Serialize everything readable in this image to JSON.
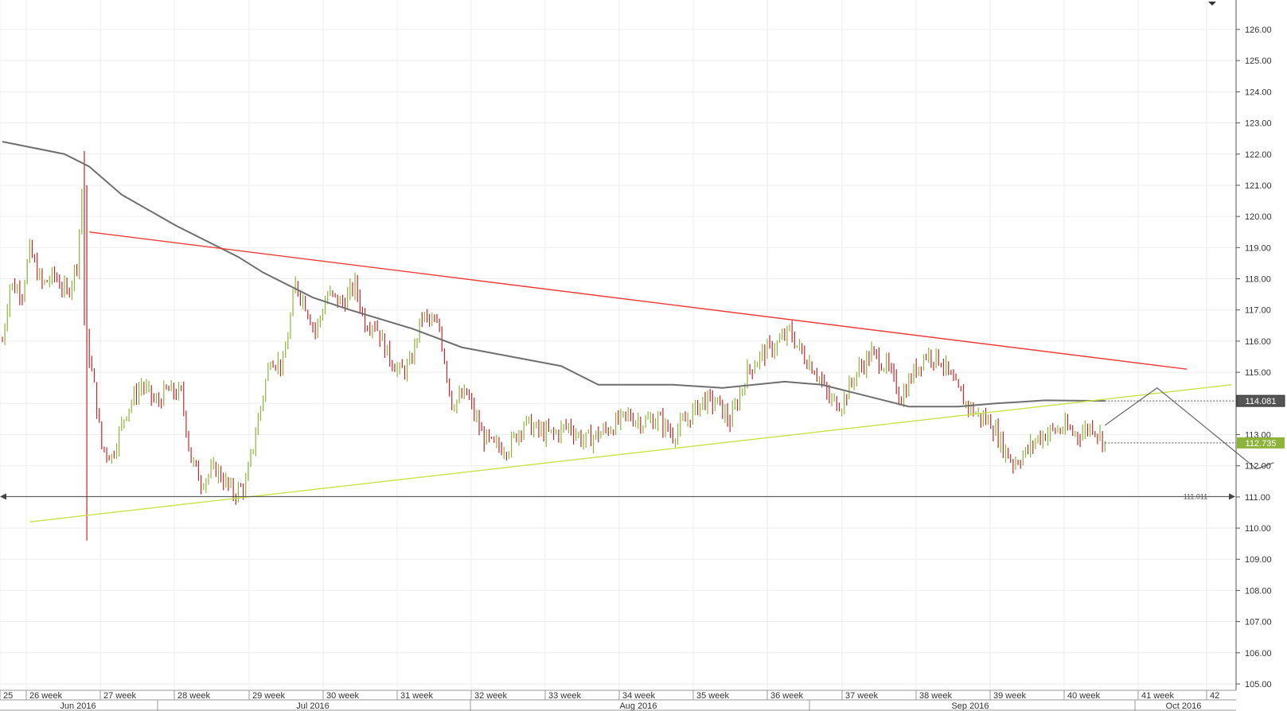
{
  "chart_data": {
    "type": "candlestick",
    "y_axis": {
      "ticks": [
        "126.00",
        "125.00",
        "124.00",
        "123.00",
        "122.00",
        "121.00",
        "120.00",
        "119.00",
        "118.00",
        "117.00",
        "116.00",
        "115.00",
        "114.00",
        "113.00",
        "112.00",
        "111.00",
        "110.00",
        "109.00",
        "108.00",
        "107.00",
        "106.00",
        "105.00"
      ],
      "ylim": [
        104.8,
        126.8
      ],
      "position": "right"
    },
    "week_labels": [
      "25",
      "26 week",
      "27 week",
      "28 week",
      "29 week",
      "30 week",
      "31 week",
      "32 week",
      "33 week",
      "34 week",
      "35 week",
      "36 week",
      "37 week",
      "38 week",
      "39 week",
      "40 week",
      "41 week",
      "42"
    ],
    "month_labels": [
      "Jun 2016",
      "Jul 2016",
      "Aug 2016",
      "Sep 2016",
      "Oct 2016"
    ],
    "price_badges": [
      {
        "label": "114.081",
        "value": 114.081,
        "color": "#555555"
      },
      {
        "label": "112.735",
        "value": 112.735,
        "color": "#8db43a"
      }
    ],
    "horizontal_level": {
      "label": "111.011",
      "value": 111.011
    },
    "colors": {
      "up_candle": "#8db43a",
      "down_candle": "#c0282b",
      "resistance_line": "#ec3c3c",
      "support_line": "#c6e34a",
      "moving_average": "#6f6f6f",
      "projection": "#707070",
      "grid": "#eeeeee"
    },
    "candles_summary": {
      "start_date_label": "Jun 2016",
      "end_date_label": "Sep 2016",
      "last_close": 112.735
    },
    "trendlines": [
      {
        "name": "resistance",
        "from": {
          "bar": 35,
          "price": 119.5
        },
        "to": {
          "bar": 477,
          "price": 115.1
        }
      },
      {
        "name": "support",
        "from": {
          "bar": 11,
          "price": 110.2
        },
        "to": {
          "bar": 495,
          "price": 114.6
        }
      }
    ],
    "moving_average_points": [
      [
        0,
        122.4
      ],
      [
        25,
        122.0
      ],
      [
        35,
        121.6
      ],
      [
        48,
        120.7
      ],
      [
        70,
        119.7
      ],
      [
        95,
        118.7
      ],
      [
        105,
        118.2
      ],
      [
        125,
        117.4
      ],
      [
        140,
        117.0
      ],
      [
        165,
        116.4
      ],
      [
        185,
        115.8
      ],
      [
        205,
        115.5
      ],
      [
        225,
        115.2
      ],
      [
        240,
        114.6
      ],
      [
        270,
        114.6
      ],
      [
        290,
        114.5
      ],
      [
        315,
        114.7
      ],
      [
        330,
        114.6
      ],
      [
        350,
        114.2
      ],
      [
        365,
        113.9
      ],
      [
        385,
        113.9
      ],
      [
        400,
        114.0
      ],
      [
        420,
        114.1
      ],
      [
        444,
        114.08
      ]
    ],
    "projection_points": [
      [
        444,
        113.3
      ],
      [
        465,
        114.5
      ],
      [
        505,
        111.9
      ],
      [
        512,
        112.1
      ]
    ],
    "grid": true
  }
}
